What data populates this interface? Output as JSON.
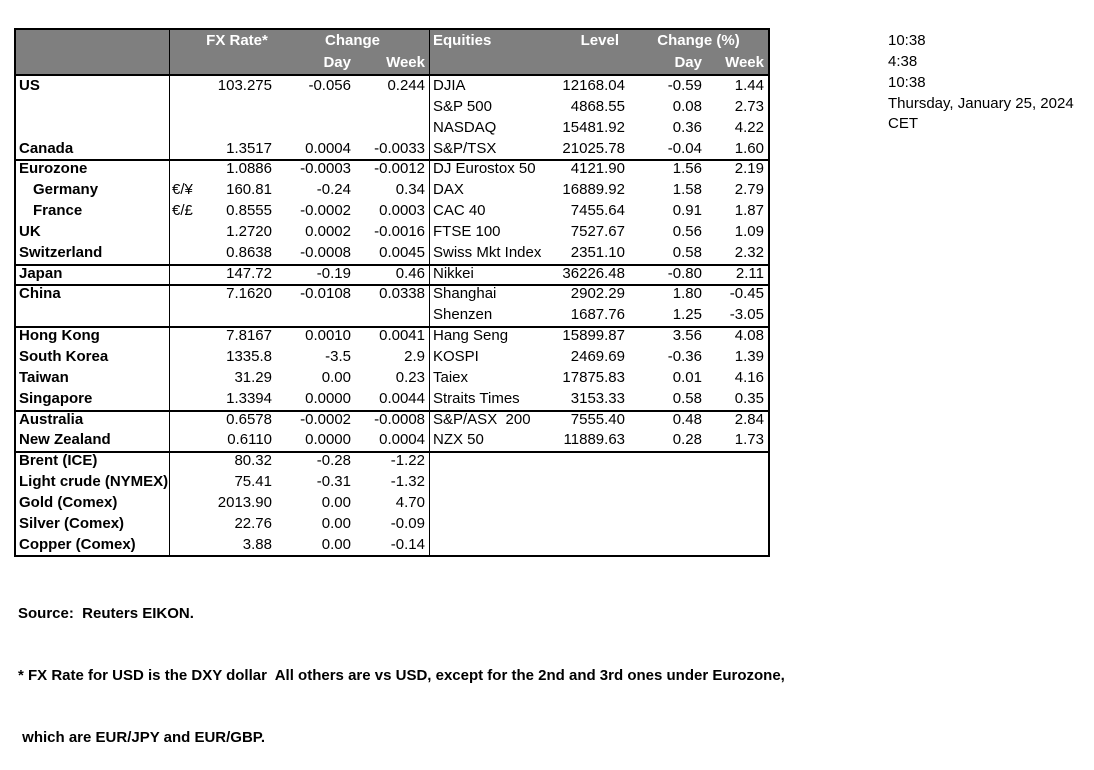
{
  "colors": {
    "header_bg": "#7f7f7f",
    "header_text": "#ffffff",
    "border": "#000000"
  },
  "table": {
    "header": {
      "fx_rate": "FX Rate*",
      "change": "Change",
      "day": "Day",
      "week": "Week",
      "equities": "Equities",
      "level": "Level",
      "change_pct": "Change (%)"
    },
    "sections": [
      {
        "id": "us-canada",
        "rows": [
          {
            "name": "US",
            "sym": "",
            "rate": "103.275",
            "day": "-0.056",
            "week": "0.244",
            "eq": "DJIA",
            "level": "12168.04",
            "eday": "-0.59",
            "eweek": "1.44"
          },
          {
            "name": "",
            "sym": "",
            "rate": "",
            "day": "",
            "week": "",
            "eq": "S&P 500",
            "level": "4868.55",
            "eday": "0.08",
            "eweek": "2.73"
          },
          {
            "name": "",
            "sym": "",
            "rate": "",
            "day": "",
            "week": "",
            "eq": "NASDAQ",
            "level": "15481.92",
            "eday": "0.36",
            "eweek": "4.22"
          },
          {
            "name": "Canada",
            "sym": "",
            "rate": "1.3517",
            "day": "0.0004",
            "week": "-0.0033",
            "eq": "S&P/TSX",
            "level": "21025.78",
            "eday": "-0.04",
            "eweek": "1.60"
          }
        ]
      },
      {
        "id": "europe",
        "rows": [
          {
            "name": "Eurozone",
            "sym": "",
            "rate": "1.0886",
            "day": "-0.0003",
            "week": "-0.0012",
            "eq": "DJ Eurostox 50",
            "level": "4121.90",
            "eday": "1.56",
            "eweek": "2.19"
          },
          {
            "name": "Germany",
            "indent": true,
            "sym": "€/¥",
            "rate": "160.81",
            "day": "-0.24",
            "week": "0.34",
            "eq": "DAX",
            "level": "16889.92",
            "eday": "1.58",
            "eweek": "2.79"
          },
          {
            "name": "France",
            "indent": true,
            "sym": "€/£",
            "rate": "0.8555",
            "day": "-0.0002",
            "week": "0.0003",
            "eq": "CAC 40",
            "level": "7455.64",
            "eday": "0.91",
            "eweek": "1.87"
          },
          {
            "name": "UK",
            "sym": "",
            "rate": "1.2720",
            "day": "0.0002",
            "week": "-0.0016",
            "eq": "FTSE 100",
            "level": "7527.67",
            "eday": "0.56",
            "eweek": "1.09"
          },
          {
            "name": "Switzerland",
            "sym": "",
            "rate": "0.8638",
            "day": "-0.0008",
            "week": "0.0045",
            "eq": "Swiss Mkt Index",
            "level": "2351.10",
            "eday": "0.58",
            "eweek": "2.32"
          }
        ]
      },
      {
        "id": "japan",
        "rows": [
          {
            "name": "Japan",
            "sym": "",
            "rate": "147.72",
            "day": "-0.19",
            "week": "0.46",
            "eq": "Nikkei",
            "level": "36226.48",
            "eday": "-0.80",
            "eweek": "2.11"
          }
        ]
      },
      {
        "id": "china",
        "rows": [
          {
            "name": "China",
            "sym": "",
            "rate": "7.1620",
            "day": "-0.0108",
            "week": "0.0338",
            "eq": "Shanghai",
            "level": "2902.29",
            "eday": "1.80",
            "eweek": "-0.45"
          },
          {
            "name": "",
            "sym": "",
            "rate": "",
            "day": "",
            "week": "",
            "eq": "Shenzen",
            "level": "1687.76",
            "eday": "1.25",
            "eweek": "-3.05"
          }
        ]
      },
      {
        "id": "asia-pacific",
        "rows": [
          {
            "name": "Hong Kong",
            "sym": "",
            "rate": "7.8167",
            "day": "0.0010",
            "week": "0.0041",
            "eq": "Hang Seng",
            "level": "15899.87",
            "eday": "3.56",
            "eweek": "4.08"
          },
          {
            "name": "South Korea",
            "sym": "",
            "rate": "1335.8",
            "day": "-3.5",
            "week": "2.9",
            "eq": "KOSPI",
            "level": "2469.69",
            "eday": "-0.36",
            "eweek": "1.39"
          },
          {
            "name": "Taiwan",
            "sym": "",
            "rate": "31.29",
            "day": "0.00",
            "week": "0.23",
            "eq": "Taiex",
            "level": "17875.83",
            "eday": "0.01",
            "eweek": "4.16"
          },
          {
            "name": "Singapore",
            "sym": "",
            "rate": "1.3394",
            "day": "0.0000",
            "week": "0.0044",
            "eq": "Straits Times",
            "level": "3153.33",
            "eday": "0.58",
            "eweek": "0.35"
          }
        ]
      },
      {
        "id": "oceania",
        "rows": [
          {
            "name": "Australia",
            "sym": "",
            "rate": "0.6578",
            "day": "-0.0002",
            "week": "-0.0008",
            "eq": "S&P/ASX  200",
            "level": "7555.40",
            "eday": "0.48",
            "eweek": "2.84"
          },
          {
            "name": "New Zealand",
            "sym": "",
            "rate": "0.6110",
            "day": "0.0000",
            "week": "0.0004",
            "eq": "NZX 50",
            "level": "11889.63",
            "eday": "0.28",
            "eweek": "1.73"
          }
        ]
      },
      {
        "id": "commodities",
        "rows": [
          {
            "name": "Brent (ICE)",
            "sym": "",
            "rate": "80.32",
            "day": "-0.28",
            "week": "-1.22",
            "eq": "",
            "level": "",
            "eday": "",
            "eweek": ""
          },
          {
            "name": "Light crude (NYMEX)",
            "sym": "",
            "rate": "75.41",
            "day": "-0.31",
            "week": "-1.32",
            "eq": "",
            "level": "",
            "eday": "",
            "eweek": ""
          },
          {
            "name": "Gold (Comex)",
            "sym": "",
            "rate": "2013.90",
            "day": "0.00",
            "week": "4.70",
            "eq": "",
            "level": "",
            "eday": "",
            "eweek": ""
          },
          {
            "name": "Silver (Comex)",
            "sym": "",
            "rate": "22.76",
            "day": "0.00",
            "week": "-0.09",
            "eq": "",
            "level": "",
            "eday": "",
            "eweek": ""
          },
          {
            "name": "Copper (Comex)",
            "sym": "",
            "rate": "3.88",
            "day": "0.00",
            "week": "-0.14",
            "eq": "",
            "level": "",
            "eday": "",
            "eweek": ""
          }
        ]
      }
    ]
  },
  "sidebar": {
    "lines": [
      "10:38",
      "4:38",
      "10:38",
      "Thursday, January 25, 2024",
      "CET"
    ]
  },
  "footnotes": {
    "lines": [
      "Source:  Reuters EIKON.",
      "* FX Rate for USD is the DXY dollar  All others are vs USD, except for the 2nd and 3rd ones under Eurozone,",
      " which are EUR/JPY and EUR/GBP."
    ]
  }
}
